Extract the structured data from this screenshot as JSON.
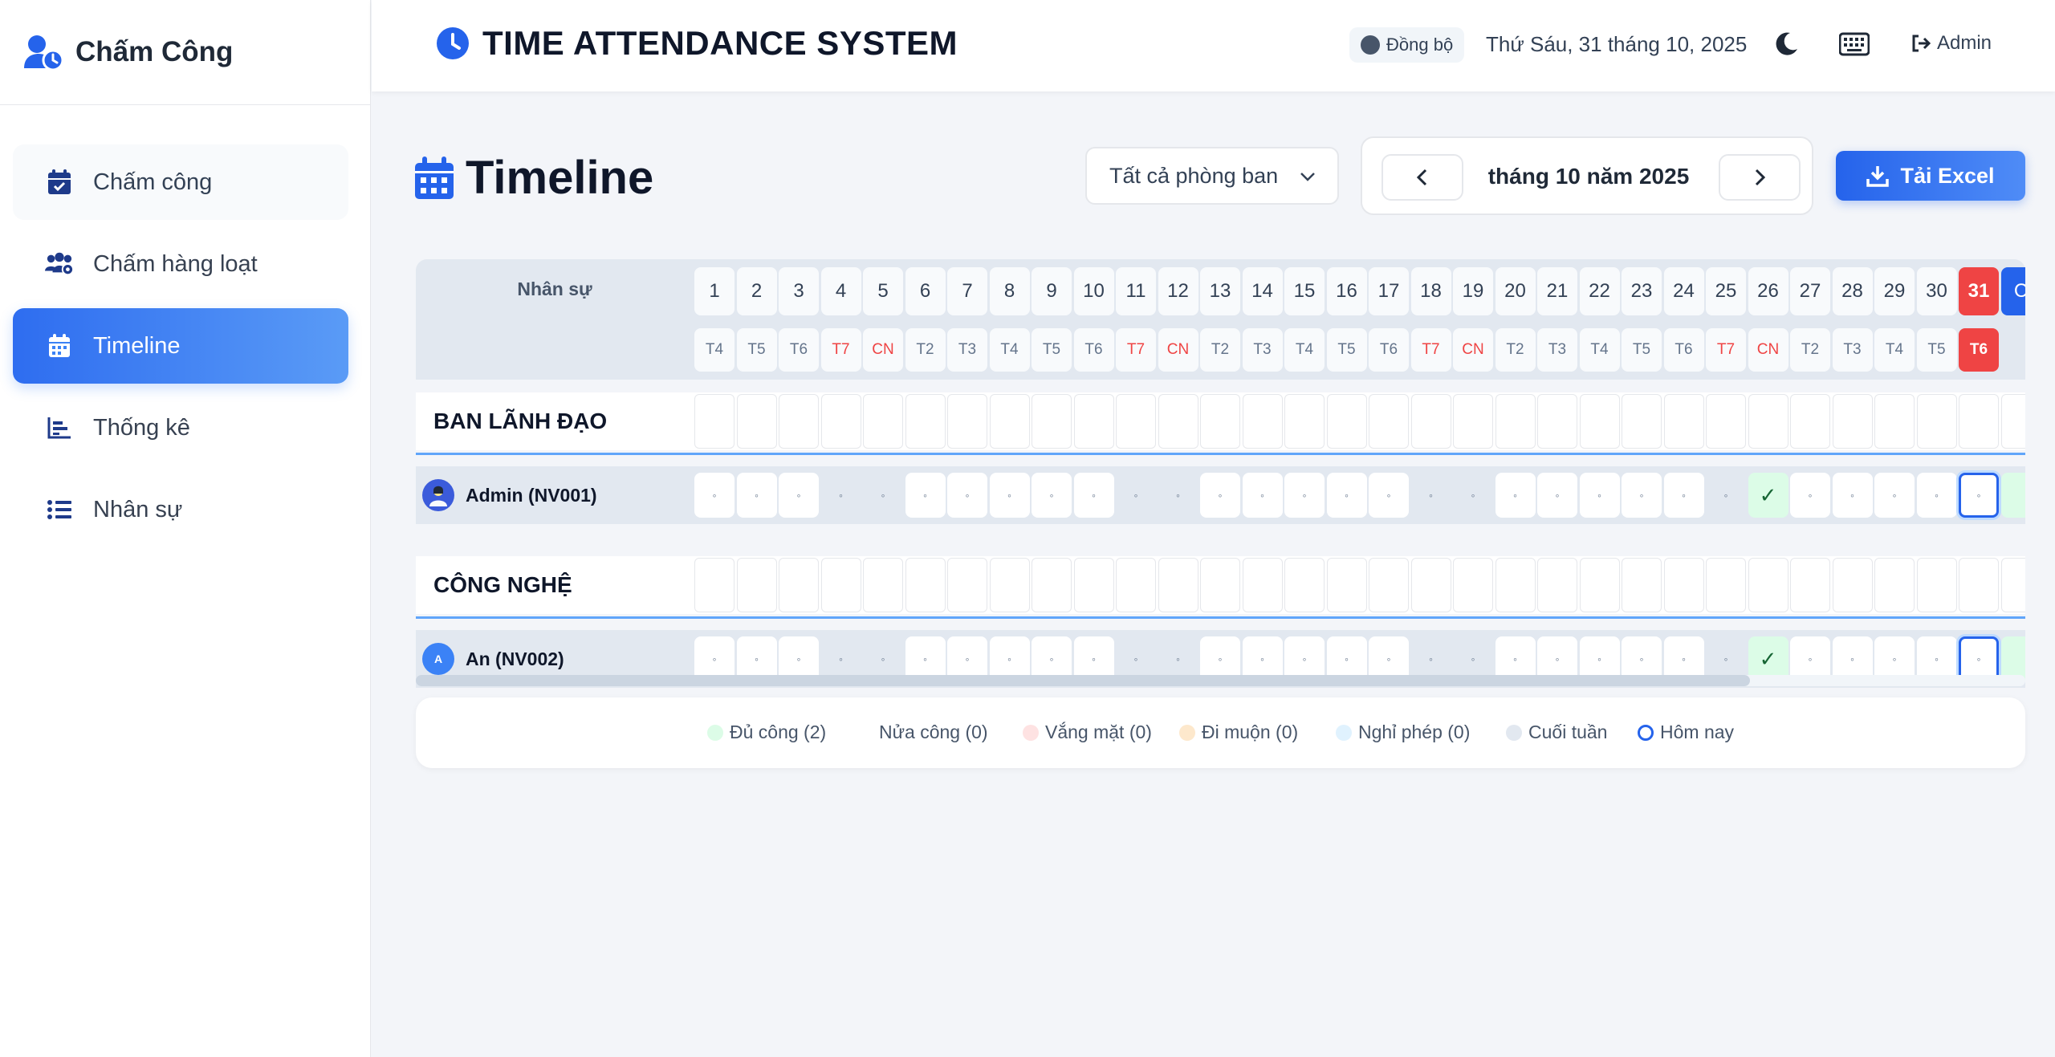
{
  "app": {
    "brand": "Chấm Công"
  },
  "sidebar": {
    "items": [
      {
        "label": "Chấm công",
        "icon": "calendar-check-icon",
        "state": "soft"
      },
      {
        "label": "Chấm hàng loạt",
        "icon": "users-gear-icon",
        "state": "normal"
      },
      {
        "label": "Timeline",
        "icon": "calendar-icon",
        "state": "active"
      },
      {
        "label": "Thống kê",
        "icon": "chart-bar-icon",
        "state": "normal"
      },
      {
        "label": "Nhân sự",
        "icon": "list-icon",
        "state": "normal"
      }
    ]
  },
  "header": {
    "title": "TIME ATTENDANCE SYSTEM",
    "sync_label": "Đồng bộ",
    "date": "Thứ Sáu, 31 tháng 10, 2025",
    "user": "Admin"
  },
  "page": {
    "title": "Timeline",
    "department_filter": "Tất cả phòng ban",
    "month_label": "tháng 10 năm 2025",
    "export_label": "Tải Excel"
  },
  "grid": {
    "employee_header": "Nhân sự",
    "days": [
      "1",
      "2",
      "3",
      "4",
      "5",
      "6",
      "7",
      "8",
      "9",
      "10",
      "11",
      "12",
      "13",
      "14",
      "15",
      "16",
      "17",
      "18",
      "19",
      "20",
      "21",
      "22",
      "23",
      "24",
      "25",
      "26",
      "27",
      "28",
      "29",
      "30",
      "31"
    ],
    "weekdays": [
      "T4",
      "T5",
      "T6",
      "T7",
      "CN",
      "T2",
      "T3",
      "T4",
      "T5",
      "T6",
      "T7",
      "CN",
      "T2",
      "T3",
      "T4",
      "T5",
      "T6",
      "T7",
      "CN",
      "T2",
      "T3",
      "T4",
      "T5",
      "T6",
      "T7",
      "CN",
      "T2",
      "T3",
      "T4",
      "T5",
      "T6"
    ],
    "extra_day": "C",
    "today_index": 30,
    "empty_mark": "◦",
    "full_mark": "✓",
    "sections": [
      {
        "department": "BAN LÃNH ĐẠO",
        "employees": [
          {
            "name": "Admin (NV001)",
            "avatar": "",
            "avatar_color": "#3b5bdb",
            "full_days": [
              26
            ]
          }
        ]
      },
      {
        "department": "CÔNG NGHỆ",
        "employees": [
          {
            "name": "An (NV002)",
            "avatar": "A",
            "avatar_color": "#3b82f6",
            "full_days": [
              26
            ]
          }
        ]
      }
    ]
  },
  "legend": [
    {
      "label": "Đủ công (2)",
      "color": "#dcfce7"
    },
    {
      "label": "Nửa công (0)",
      "color": ""
    },
    {
      "label": "Vắng mặt (0)",
      "color": "#fee2e2"
    },
    {
      "label": "Đi muộn (0)",
      "color": "#fde8cc"
    },
    {
      "label": "Nghỉ phép (0)",
      "color": "#e0f2fe"
    },
    {
      "label": "Cuối tuần",
      "color": "#e2e8f0"
    },
    {
      "label": "Hôm nay",
      "color": "ring"
    }
  ],
  "colors": {
    "accent": "#2563eb",
    "weekend_text": "#ef4444",
    "today": "#ef4444",
    "full": "#dcfce7"
  }
}
